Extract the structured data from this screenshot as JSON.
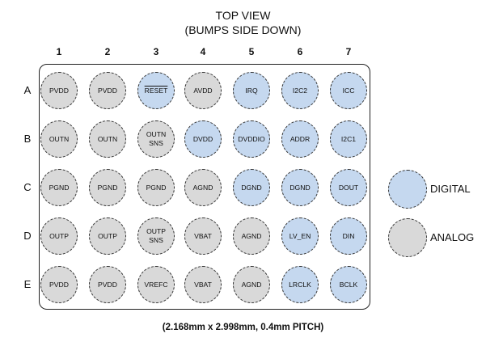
{
  "title_line1": "TOP VIEW",
  "title_line2": "(BUMPS SIDE DOWN)",
  "columns": [
    "1",
    "2",
    "3",
    "4",
    "5",
    "6",
    "7"
  ],
  "rows": [
    "A",
    "B",
    "C",
    "D",
    "E"
  ],
  "bumps": [
    [
      {
        "lines": [
          "PVDD"
        ],
        "type": "analog"
      },
      {
        "lines": [
          "PVDD"
        ],
        "type": "analog"
      },
      {
        "lines": [
          "RESET"
        ],
        "type": "digital",
        "overline": true
      },
      {
        "lines": [
          "AVDD"
        ],
        "type": "analog"
      },
      {
        "lines": [
          "IRQ"
        ],
        "type": "digital"
      },
      {
        "lines": [
          "I2C2"
        ],
        "type": "digital"
      },
      {
        "lines": [
          "ICC"
        ],
        "type": "digital"
      }
    ],
    [
      {
        "lines": [
          "OUTN"
        ],
        "type": "analog"
      },
      {
        "lines": [
          "OUTN"
        ],
        "type": "analog"
      },
      {
        "lines": [
          "OUTN",
          "SNS"
        ],
        "type": "analog"
      },
      {
        "lines": [
          "DVDD"
        ],
        "type": "digital"
      },
      {
        "lines": [
          "DVDDIO"
        ],
        "type": "digital"
      },
      {
        "lines": [
          "ADDR"
        ],
        "type": "digital"
      },
      {
        "lines": [
          "I2C1"
        ],
        "type": "digital"
      }
    ],
    [
      {
        "lines": [
          "PGND"
        ],
        "type": "analog"
      },
      {
        "lines": [
          "PGND"
        ],
        "type": "analog"
      },
      {
        "lines": [
          "PGND"
        ],
        "type": "analog"
      },
      {
        "lines": [
          "AGND"
        ],
        "type": "analog"
      },
      {
        "lines": [
          "DGND"
        ],
        "type": "digital"
      },
      {
        "lines": [
          "DGND"
        ],
        "type": "digital"
      },
      {
        "lines": [
          "DOUT"
        ],
        "type": "digital"
      }
    ],
    [
      {
        "lines": [
          "OUTP"
        ],
        "type": "analog"
      },
      {
        "lines": [
          "OUTP"
        ],
        "type": "analog"
      },
      {
        "lines": [
          "OUTP",
          "SNS"
        ],
        "type": "analog"
      },
      {
        "lines": [
          "VBAT"
        ],
        "type": "analog"
      },
      {
        "lines": [
          "AGND"
        ],
        "type": "analog"
      },
      {
        "lines": [
          "LV_EN"
        ],
        "type": "digital"
      },
      {
        "lines": [
          "DIN"
        ],
        "type": "digital"
      }
    ],
    [
      {
        "lines": [
          "PVDD"
        ],
        "type": "analog"
      },
      {
        "lines": [
          "PVDD"
        ],
        "type": "analog"
      },
      {
        "lines": [
          "VREFC"
        ],
        "type": "analog"
      },
      {
        "lines": [
          "VBAT"
        ],
        "type": "analog"
      },
      {
        "lines": [
          "AGND"
        ],
        "type": "analog"
      },
      {
        "lines": [
          "LRCLK"
        ],
        "type": "digital"
      },
      {
        "lines": [
          "BCLK"
        ],
        "type": "digital"
      }
    ]
  ],
  "legend": [
    {
      "label": "DIGITAL",
      "type": "digital"
    },
    {
      "label": "ANALOG",
      "type": "analog"
    }
  ],
  "colors": {
    "digital": "#c5d8ef",
    "analog": "#d9d9d9"
  },
  "footer": "(2.168mm x 2.998mm, 0.4mm PITCH)"
}
